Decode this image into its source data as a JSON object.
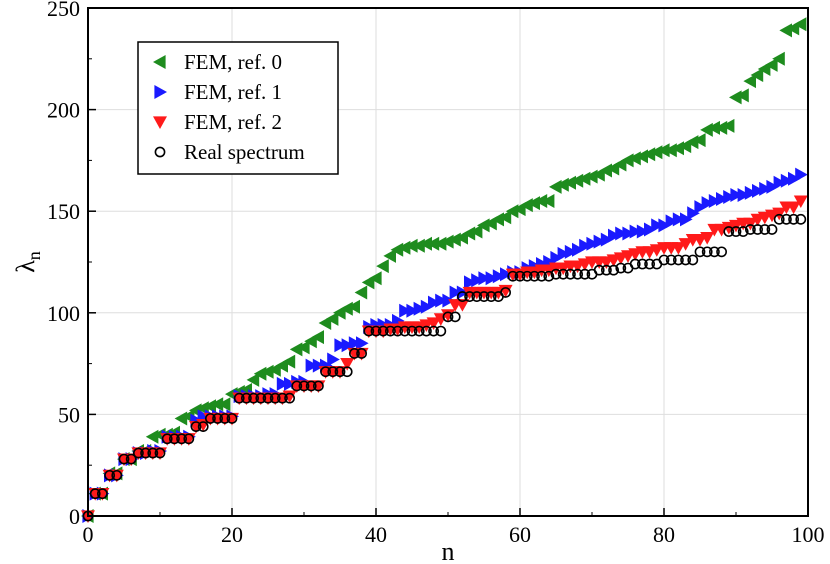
{
  "chart_data": {
    "type": "scatter",
    "title": "",
    "xlabel": "n",
    "ylabel": "λ",
    "ylabel_subscript": "n",
    "xlim": [
      0,
      100
    ],
    "ylim": [
      0,
      250
    ],
    "xticks": [
      0,
      20,
      40,
      60,
      80,
      100
    ],
    "yticks": [
      0,
      50,
      100,
      150,
      200,
      250
    ],
    "grid": true,
    "legend_position": "top-left",
    "series": [
      {
        "name": "FEM, ref. 0",
        "marker": "triangle-left",
        "color": "#1e8c1e",
        "x": [
          0,
          1,
          2,
          3,
          4,
          5,
          6,
          7,
          8,
          9,
          10,
          11,
          12,
          13,
          14,
          15,
          16,
          17,
          18,
          19,
          20,
          21,
          22,
          23,
          24,
          25,
          26,
          27,
          28,
          29,
          30,
          31,
          32,
          33,
          34,
          35,
          36,
          37,
          38,
          39,
          40,
          41,
          42,
          43,
          44,
          45,
          46,
          47,
          48,
          49,
          50,
          51,
          52,
          53,
          54,
          55,
          56,
          57,
          58,
          59,
          60,
          61,
          62,
          63,
          64,
          65,
          66,
          67,
          68,
          69,
          70,
          71,
          72,
          73,
          74,
          75,
          76,
          77,
          78,
          79,
          80,
          81,
          82,
          83,
          84,
          85,
          86,
          87,
          88,
          89,
          90,
          91,
          92,
          93,
          94,
          95,
          96,
          97,
          98,
          99
        ],
        "y": [
          0,
          11,
          11,
          21,
          21,
          28,
          28,
          32,
          32,
          39,
          40,
          40,
          41,
          48,
          49,
          52,
          53,
          54,
          55,
          55,
          60,
          61,
          62,
          67,
          70,
          71,
          72,
          74,
          76,
          82,
          83,
          86,
          88,
          95,
          97,
          100,
          102,
          103,
          110,
          115,
          117,
          123,
          128,
          131,
          132,
          133,
          133,
          134,
          134,
          134,
          135,
          136,
          137,
          139,
          140,
          143,
          144,
          146,
          147,
          150,
          151,
          153,
          154,
          155,
          155,
          162,
          163,
          164,
          165,
          166,
          167,
          168,
          170,
          171,
          173,
          175,
          176,
          177,
          178,
          179,
          180,
          180,
          181,
          182,
          184,
          185,
          190,
          191,
          191,
          192,
          206,
          207,
          214,
          217,
          220,
          222,
          225,
          239,
          240,
          242
        ]
      },
      {
        "name": "FEM, ref. 1",
        "marker": "triangle-right",
        "color": "#1a1aff",
        "x": [
          0,
          1,
          2,
          3,
          4,
          5,
          6,
          7,
          8,
          9,
          10,
          11,
          12,
          13,
          14,
          15,
          16,
          17,
          18,
          19,
          20,
          21,
          22,
          23,
          24,
          25,
          26,
          27,
          28,
          29,
          30,
          31,
          32,
          33,
          34,
          35,
          36,
          37,
          38,
          39,
          40,
          41,
          42,
          43,
          44,
          45,
          46,
          47,
          48,
          49,
          50,
          51,
          52,
          53,
          54,
          55,
          56,
          57,
          58,
          59,
          60,
          61,
          62,
          63,
          64,
          65,
          66,
          67,
          68,
          69,
          70,
          71,
          72,
          73,
          74,
          75,
          76,
          77,
          78,
          79,
          80,
          81,
          82,
          83,
          84,
          85,
          86,
          87,
          88,
          89,
          90,
          91,
          92,
          93,
          94,
          95,
          96,
          97,
          98,
          99
        ],
        "y": [
          0,
          11,
          11,
          20,
          20,
          28,
          28,
          31,
          31,
          32,
          32,
          39,
          39,
          39,
          39,
          47,
          49,
          49,
          49,
          49,
          49,
          59,
          59,
          59,
          59,
          60,
          60,
          65,
          65,
          66,
          66,
          74,
          74,
          74,
          77,
          84,
          84,
          85,
          85,
          93,
          94,
          94,
          94,
          96,
          101,
          101,
          102,
          103,
          105,
          106,
          106,
          110,
          110,
          115,
          116,
          117,
          117,
          118,
          119,
          120,
          120,
          122,
          123,
          124,
          125,
          127,
          129,
          130,
          131,
          133,
          134,
          135,
          136,
          138,
          139,
          139,
          140,
          140,
          141,
          143,
          143,
          145,
          146,
          146,
          149,
          152,
          154,
          155,
          156,
          157,
          158,
          158,
          159,
          160,
          161,
          162,
          164,
          165,
          166,
          168
        ]
      },
      {
        "name": "FEM, ref. 2",
        "marker": "triangle-down",
        "color": "#ff1a1a",
        "x": [
          0,
          1,
          2,
          3,
          4,
          5,
          6,
          7,
          8,
          9,
          10,
          11,
          12,
          13,
          14,
          15,
          16,
          17,
          18,
          19,
          20,
          21,
          22,
          23,
          24,
          25,
          26,
          27,
          28,
          29,
          30,
          31,
          32,
          33,
          34,
          35,
          36,
          37,
          38,
          39,
          40,
          41,
          42,
          43,
          44,
          45,
          46,
          47,
          48,
          49,
          50,
          51,
          52,
          53,
          54,
          55,
          56,
          57,
          58,
          59,
          60,
          61,
          62,
          63,
          64,
          65,
          66,
          67,
          68,
          69,
          70,
          71,
          72,
          73,
          74,
          75,
          76,
          77,
          78,
          79,
          80,
          81,
          82,
          83,
          84,
          85,
          86,
          87,
          88,
          89,
          90,
          91,
          92,
          93,
          94,
          95,
          96,
          97,
          98,
          99
        ],
        "y": [
          0,
          11,
          11,
          20,
          20,
          28,
          28,
          31,
          31,
          31,
          31,
          38,
          38,
          38,
          38,
          44,
          45,
          48,
          48,
          48,
          48,
          58,
          58,
          58,
          58,
          58,
          58,
          58,
          59,
          64,
          64,
          64,
          64,
          71,
          71,
          71,
          75,
          80,
          80,
          91,
          91,
          91,
          92,
          92,
          93,
          93,
          93,
          94,
          95,
          97,
          99,
          104,
          104,
          110,
          110,
          110,
          110,
          110,
          111,
          119,
          119,
          120,
          120,
          121,
          121,
          122,
          122,
          123,
          123,
          124,
          125,
          125,
          125,
          126,
          127,
          128,
          129,
          130,
          130,
          131,
          132,
          132,
          132,
          134,
          136,
          136,
          137,
          141,
          141,
          142,
          143,
          144,
          144,
          146,
          147,
          148,
          149,
          152,
          152,
          155
        ]
      },
      {
        "name": "Real spectrum",
        "marker": "circle-open",
        "color": "#000000",
        "x": [
          0,
          1,
          2,
          3,
          4,
          5,
          6,
          7,
          8,
          9,
          10,
          11,
          12,
          13,
          14,
          15,
          16,
          17,
          18,
          19,
          20,
          21,
          22,
          23,
          24,
          25,
          26,
          27,
          28,
          29,
          30,
          31,
          32,
          33,
          34,
          35,
          36,
          37,
          38,
          39,
          40,
          41,
          42,
          43,
          44,
          45,
          46,
          47,
          48,
          49,
          50,
          51,
          52,
          53,
          54,
          55,
          56,
          57,
          58,
          59,
          60,
          61,
          62,
          63,
          64,
          65,
          66,
          67,
          68,
          69,
          70,
          71,
          72,
          73,
          74,
          75,
          76,
          77,
          78,
          79,
          80,
          81,
          82,
          83,
          84,
          85,
          86,
          87,
          88,
          89,
          90,
          91,
          92,
          93,
          94,
          95,
          96,
          97,
          98,
          99
        ],
        "y": [
          0,
          11,
          11,
          20,
          20,
          28,
          28,
          31,
          31,
          31,
          31,
          38,
          38,
          38,
          38,
          44,
          44,
          48,
          48,
          48,
          48,
          58,
          58,
          58,
          58,
          58,
          58,
          58,
          58,
          64,
          64,
          64,
          64,
          71,
          71,
          71,
          71,
          80,
          80,
          91,
          91,
          91,
          91,
          91,
          91,
          91,
          91,
          91,
          91,
          91,
          98,
          98,
          108,
          108,
          108,
          108,
          108,
          108,
          110,
          118,
          118,
          118,
          118,
          118,
          118,
          119,
          119,
          119,
          119,
          119,
          119,
          121,
          121,
          121,
          122,
          122,
          124,
          124,
          124,
          124,
          126,
          126,
          126,
          126,
          126,
          130,
          130,
          130,
          130,
          140,
          140,
          140,
          141,
          141,
          141,
          141,
          146,
          146,
          146,
          146
        ]
      }
    ]
  }
}
